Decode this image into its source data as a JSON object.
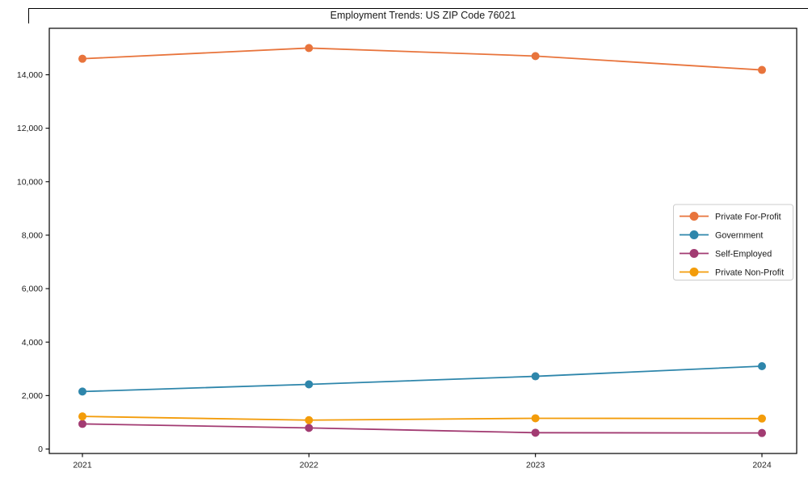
{
  "figure": {
    "title": "Employment Trends: US ZIP Code 76021"
  },
  "chart_data": {
    "type": "line",
    "title": "Employment Trends: US ZIP Code 76021",
    "xlabel": "",
    "ylabel": "",
    "categories": [
      "2021",
      "2022",
      "2023",
      "2024"
    ],
    "series": [
      {
        "name": "Private For-Profit",
        "color": "#E8743C",
        "values": [
          14600,
          15000,
          14700,
          14180
        ]
      },
      {
        "name": "Government",
        "color": "#2E86AB",
        "values": [
          2150,
          2420,
          2720,
          3100
        ]
      },
      {
        "name": "Self-Employed",
        "color": "#A23B72",
        "values": [
          940,
          790,
          610,
          600
        ]
      },
      {
        "name": "Private Non-Profit",
        "color": "#F39C0A",
        "values": [
          1220,
          1080,
          1150,
          1140
        ]
      }
    ],
    "yticks": [
      0,
      2000,
      4000,
      6000,
      8000,
      10000,
      12000,
      14000
    ],
    "ytick_labels": [
      "0",
      "2,000",
      "4,000",
      "6,000",
      "8,000",
      "10,000",
      "12,000",
      "14,000"
    ],
    "ylim": [
      -170,
      15710
    ],
    "grid": false,
    "legend_position": "center-right",
    "marker": "circle",
    "axis_color": "#000000",
    "text_color": "#1a1a1a",
    "legend_border_color": "#cccccc"
  }
}
